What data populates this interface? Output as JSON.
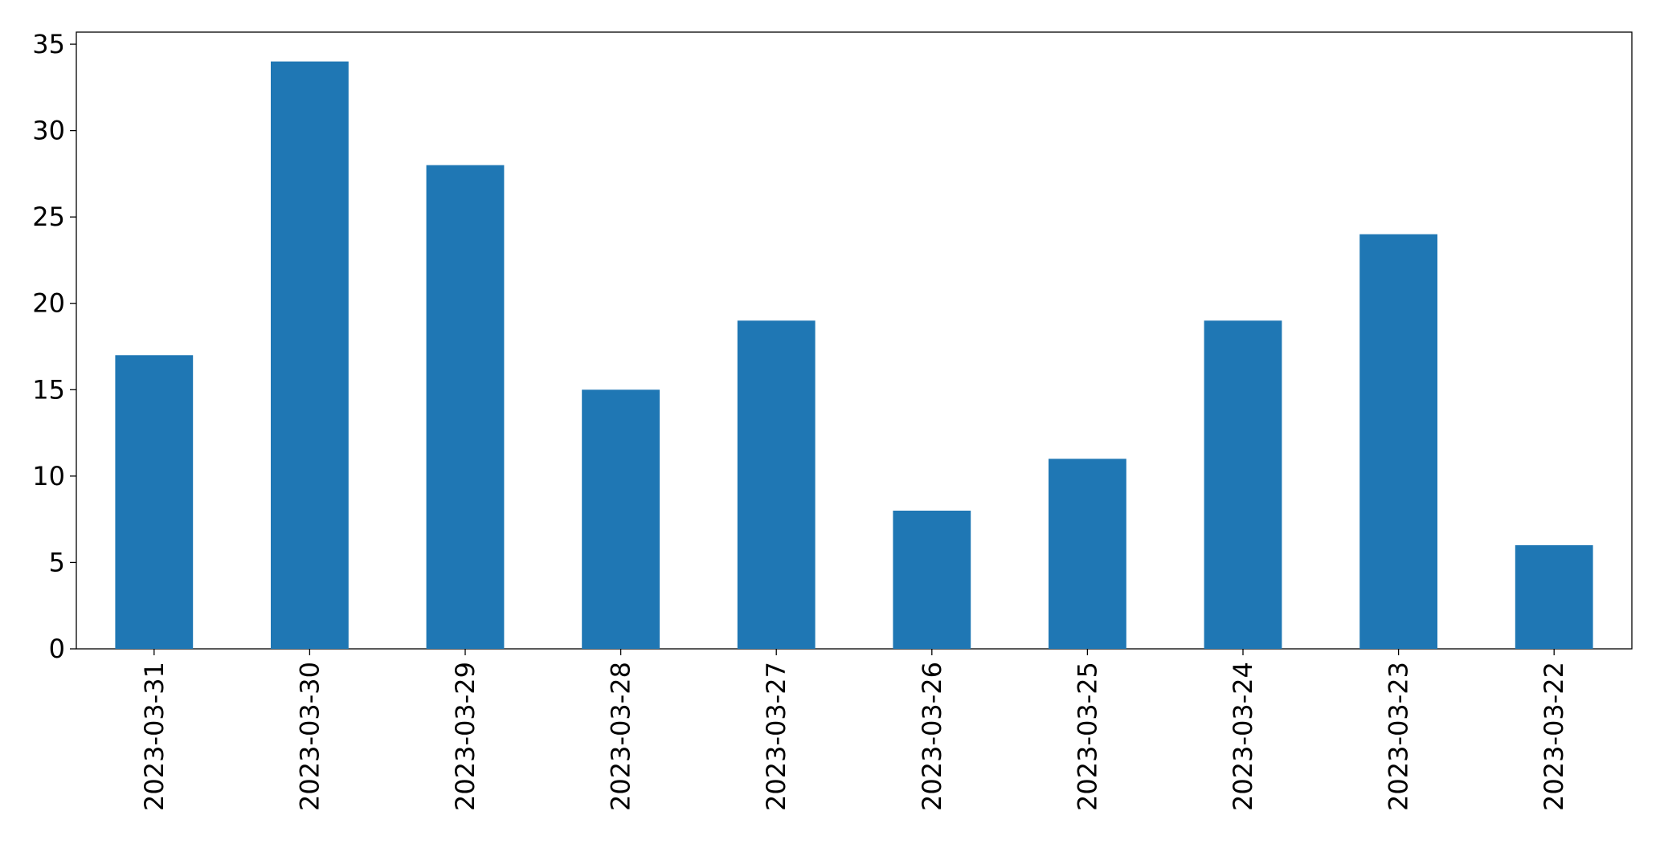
{
  "chart_data": {
    "type": "bar",
    "categories": [
      "2023-03-31",
      "2023-03-30",
      "2023-03-29",
      "2023-03-28",
      "2023-03-27",
      "2023-03-26",
      "2023-03-25",
      "2023-03-24",
      "2023-03-23",
      "2023-03-22"
    ],
    "values": [
      17,
      34,
      28,
      15,
      19,
      8,
      11,
      19,
      24,
      6
    ],
    "color": "#1f77b4",
    "ylim": [
      0,
      35.7
    ],
    "yticks": [
      0,
      5,
      10,
      15,
      20,
      25,
      30,
      35
    ],
    "grid": false
  }
}
